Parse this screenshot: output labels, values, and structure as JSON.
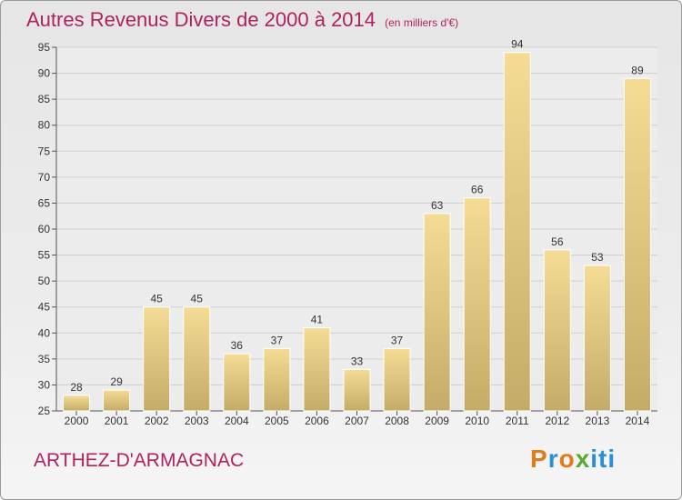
{
  "header": {
    "title": "Autres Revenus Divers de 2000 à 2014",
    "subtitle": "(en milliers d'€)"
  },
  "footer": {
    "location": "ARTHEZ-D'ARMAGNAC",
    "brand": "Proxiti"
  },
  "colors": {
    "title": "#b0225e",
    "bar_light": "#f5dc95",
    "bar_dark": "#c4ac68",
    "grid": "#cfcfcf"
  },
  "chart_data": {
    "type": "bar",
    "title": "Autres Revenus Divers de 2000 à 2014",
    "subtitle": "(en milliers d'€)",
    "xlabel": "",
    "ylabel": "",
    "categories": [
      "2000",
      "2001",
      "2002",
      "2003",
      "2004",
      "2005",
      "2006",
      "2007",
      "2008",
      "2009",
      "2010",
      "2011",
      "2012",
      "2013",
      "2014"
    ],
    "values": [
      28,
      29,
      45,
      45,
      36,
      37,
      41,
      33,
      37,
      63,
      66,
      94,
      56,
      53,
      89
    ],
    "ylim": [
      25,
      95
    ],
    "yticks": [
      25,
      30,
      35,
      40,
      45,
      50,
      55,
      60,
      65,
      70,
      75,
      80,
      85,
      90,
      95
    ],
    "grid": true,
    "data_labels": true,
    "legend": "none"
  }
}
